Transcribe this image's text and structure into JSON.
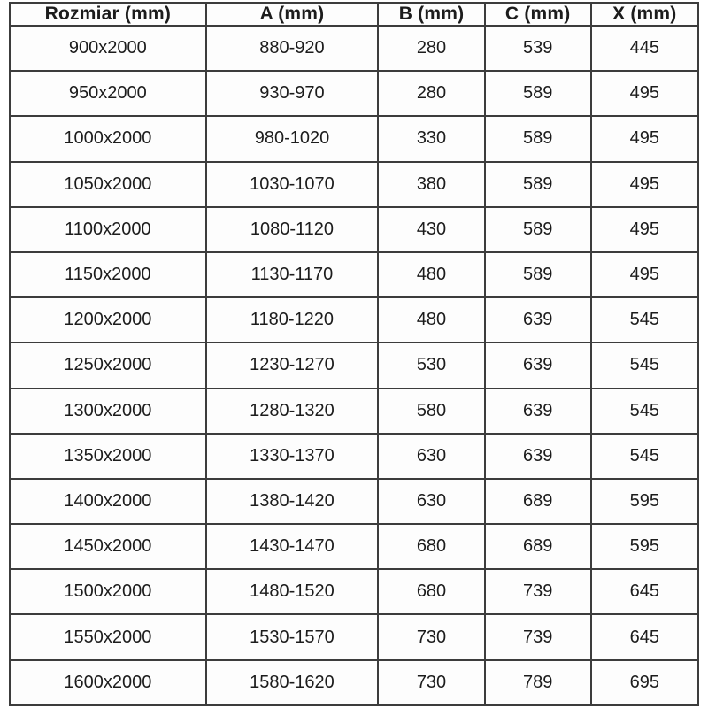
{
  "table": {
    "columns": [
      {
        "key": "rozmiar",
        "label": "Rozmiar (mm)"
      },
      {
        "key": "a",
        "label": "A (mm)"
      },
      {
        "key": "b",
        "label": "B (mm)"
      },
      {
        "key": "c",
        "label": "C (mm)"
      },
      {
        "key": "x",
        "label": "X (mm)"
      }
    ],
    "rows": [
      [
        "900x2000",
        "880-920",
        "280",
        "539",
        "445"
      ],
      [
        "950x2000",
        "930-970",
        "280",
        "589",
        "495"
      ],
      [
        "1000x2000",
        "980-1020",
        "330",
        "589",
        "495"
      ],
      [
        "1050x2000",
        "1030-1070",
        "380",
        "589",
        "495"
      ],
      [
        "1100x2000",
        "1080-1120",
        "430",
        "589",
        "495"
      ],
      [
        "1150x2000",
        "1130-1170",
        "480",
        "589",
        "495"
      ],
      [
        "1200x2000",
        "1180-1220",
        "480",
        "639",
        "545"
      ],
      [
        "1250x2000",
        "1230-1270",
        "530",
        "639",
        "545"
      ],
      [
        "1300x2000",
        "1280-1320",
        "580",
        "639",
        "545"
      ],
      [
        "1350x2000",
        "1330-1370",
        "630",
        "639",
        "545"
      ],
      [
        "1400x2000",
        "1380-1420",
        "630",
        "689",
        "595"
      ],
      [
        "1450x2000",
        "1430-1470",
        "680",
        "689",
        "595"
      ],
      [
        "1500x2000",
        "1480-1520",
        "680",
        "739",
        "645"
      ],
      [
        "1550x2000",
        "1530-1570",
        "730",
        "739",
        "645"
      ],
      [
        "1600x2000",
        "1580-1620",
        "730",
        "789",
        "695"
      ]
    ],
    "colors": {
      "border": "#3c3c3c",
      "text": "#1c1c1c",
      "background": "#fdfdfd"
    }
  }
}
